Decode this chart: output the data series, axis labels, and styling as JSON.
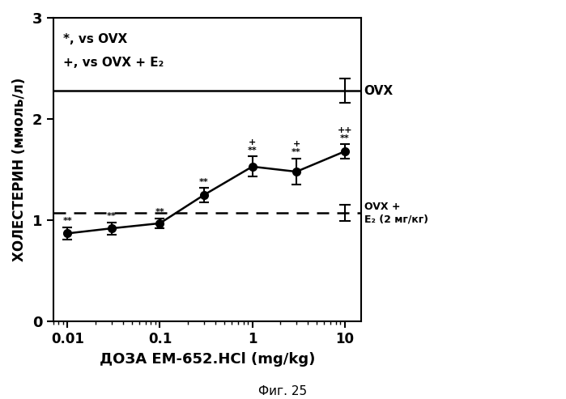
{
  "x_values": [
    0.01,
    0.03,
    0.1,
    0.3,
    1.0,
    3.0,
    10.0
  ],
  "y_values": [
    0.87,
    0.92,
    0.97,
    1.25,
    1.53,
    1.48,
    1.68
  ],
  "y_errors": [
    0.06,
    0.06,
    0.05,
    0.07,
    0.1,
    0.13,
    0.07
  ],
  "ovx_level": 2.28,
  "ovx_error": 0.12,
  "ovx_e2_level": 1.07,
  "ovx_e2_error": 0.08,
  "xlabel": "ДОЗА EM-652.HCl (mg/kg)",
  "ylabel": "ХОЛЕСТЕРИН (ммоль/л)",
  "legend_text1": "*, vs OVX",
  "legend_text2": "+, vs OVX + E₂",
  "ovx_label": "OVX",
  "ovx_e2_label": "OVX +\nE₂ (2 мг/кг)",
  "caption": "Фиг. 25",
  "ylim": [
    0,
    3.0
  ],
  "background_color": "#ffffff",
  "line_color": "#000000",
  "marker_color": "#000000"
}
